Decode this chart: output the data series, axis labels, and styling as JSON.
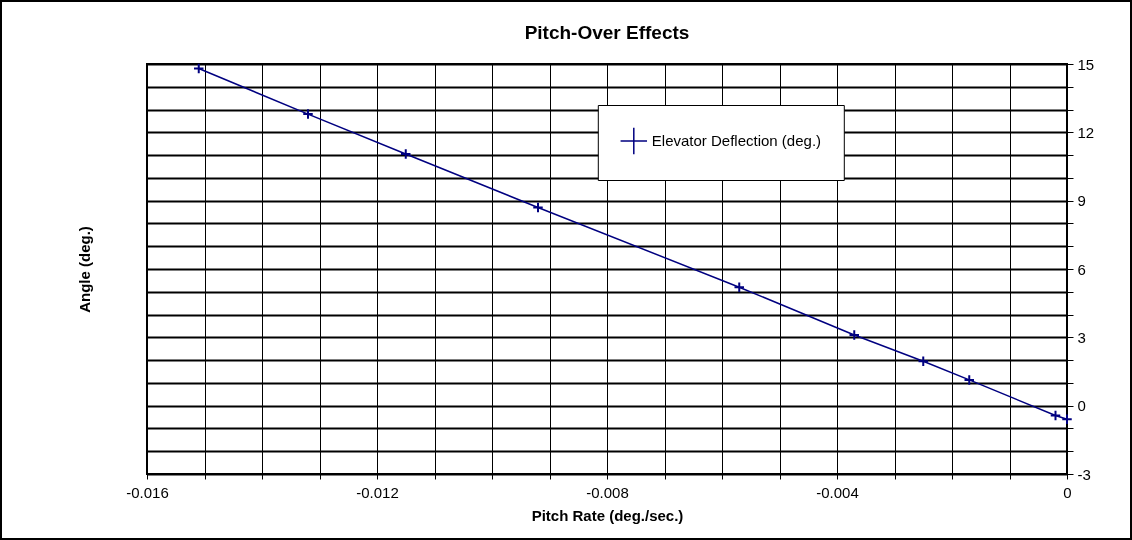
{
  "chart_data": {
    "type": "line",
    "title": "Pitch-Over Effects",
    "xlabel": "Pitch Rate (deg./sec.)",
    "ylabel": "Angle (deg.)",
    "x": [
      -0.0151,
      -0.0132,
      -0.0115,
      -0.0092,
      -0.0057,
      -0.0037,
      -0.0025,
      -0.0017,
      -0.0002,
      0
    ],
    "series": [
      {
        "name": "Elevator Deflection (deg.)",
        "color": "#000080",
        "values": [
          14.8,
          12.8,
          11.05,
          8.7,
          5.2,
          3.1,
          1.95,
          1.13,
          -0.43,
          -0.6
        ]
      }
    ],
    "xlim": [
      -0.016,
      0
    ],
    "ylim": [
      -3,
      15
    ],
    "xticks": [
      -0.016,
      {
        "value": -0.015,
        "label": null
      },
      {
        "value": -0.014,
        "label": null
      },
      {
        "value": -0.013,
        "label": null
      },
      -0.012,
      {
        "value": -0.011,
        "label": null
      },
      {
        "value": -0.01,
        "label": null
      },
      {
        "value": -0.009,
        "label": null
      },
      -0.008,
      {
        "value": -0.007,
        "label": null
      },
      {
        "value": -0.006,
        "label": null
      },
      {
        "value": -0.005,
        "label": null
      },
      -0.004,
      {
        "value": -0.003,
        "label": null
      },
      {
        "value": -0.002,
        "label": null
      },
      {
        "value": -0.001,
        "label": null
      },
      0
    ],
    "yticks": [
      -3,
      {
        "value": -2,
        "label": null
      },
      {
        "value": -1,
        "label": null
      },
      0,
      {
        "value": 1,
        "label": null
      },
      {
        "value": 2,
        "label": null
      },
      3,
      {
        "value": 4,
        "label": null
      },
      {
        "value": 5,
        "label": null
      },
      6,
      {
        "value": 7,
        "label": null
      },
      {
        "value": 8,
        "label": null
      },
      9,
      {
        "value": 10,
        "label": null
      },
      {
        "value": 11,
        "label": null
      },
      12,
      {
        "value": 13,
        "label": null
      },
      {
        "value": 14,
        "label": null
      },
      15
    ],
    "grid": true,
    "legend": "top right",
    "marker": "cross",
    "line_style": "solid"
  }
}
